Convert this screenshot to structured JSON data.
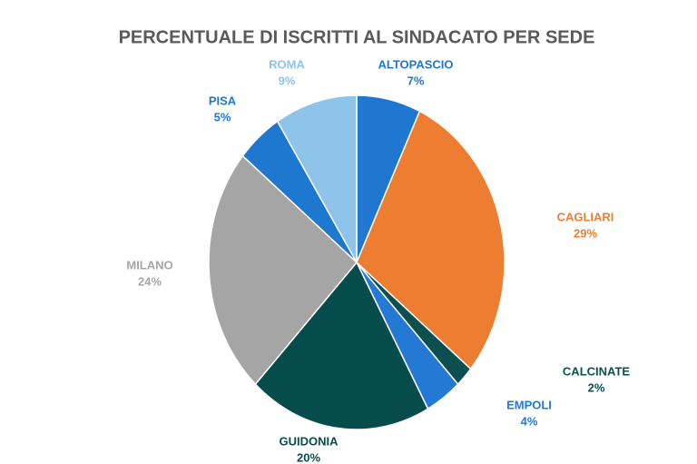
{
  "chart_data": {
    "type": "pie",
    "title": "PERCENTUALE DI ISCRITTI AL SINDACATO PER SEDE",
    "categories": [
      "ALTOPASCIO",
      "CAGLIARI",
      "CALCINATE",
      "EMPOLI",
      "GUIDONIA",
      "MILANO",
      "PISA",
      "ROMA"
    ],
    "values": [
      7,
      29,
      2,
      4,
      20,
      24,
      5,
      9
    ],
    "value_labels": [
      "7%",
      "29%",
      "2%",
      "4%",
      "20%",
      "24%",
      "5%",
      "9%"
    ],
    "colors": [
      "#1f77d0",
      "#ed7d31",
      "#0d4f51",
      "#2479d4",
      "#064c4c",
      "#a5a5a5",
      "#1f78d0",
      "#8ec3ea"
    ]
  }
}
